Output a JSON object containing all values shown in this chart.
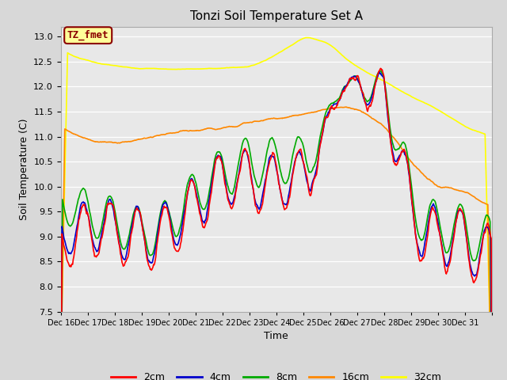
{
  "title": "Tonzi Soil Temperature Set A",
  "xlabel": "Time",
  "ylabel": "Soil Temperature (C)",
  "ylim": [
    7.5,
    13.2
  ],
  "figsize": [
    6.4,
    4.8
  ],
  "dpi": 100,
  "bg_color": "#d8d8d8",
  "plot_bg_color": "#e8e8e8",
  "label_box_text": "TZ_fmet",
  "label_box_color": "#ffff99",
  "label_box_border": "#8B0000",
  "series_colors": {
    "2cm": "#ff0000",
    "4cm": "#0000cc",
    "8cm": "#00aa00",
    "16cm": "#ff8800",
    "32cm": "#ffff00"
  },
  "x_tick_labels": [
    "Dec 16",
    "Dec 17",
    "Dec 18",
    "Dec 19",
    "Dec 20",
    "Dec 21",
    "Dec 22",
    "Dec 23",
    "Dec 24",
    "Dec 25",
    "Dec 26",
    "Dec 27",
    "Dec 28",
    "Dec 29",
    "Dec 30",
    "Dec 31"
  ],
  "yticks": [
    7.5,
    8.0,
    8.5,
    9.0,
    9.5,
    10.0,
    10.5,
    11.0,
    11.5,
    12.0,
    12.5,
    13.0
  ]
}
